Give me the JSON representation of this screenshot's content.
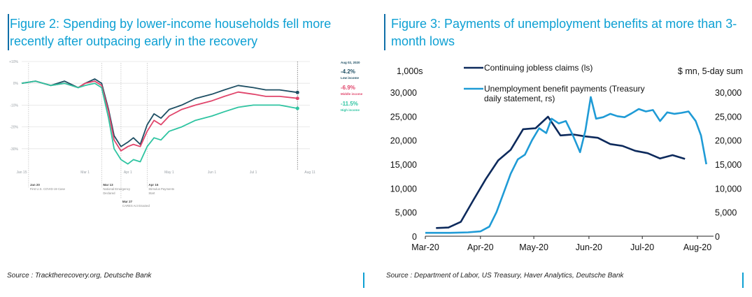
{
  "left": {
    "title": "Figure 2: Spending by lower-income households fell more recently after outpacing early in the recovery",
    "source": "Source : Tracktherecovery.org, Deutsche Bank",
    "chart_data": {
      "type": "line",
      "ylim": [
        -40,
        10
      ],
      "ylabels": [
        "+10%",
        "0%",
        "-10%",
        "-20%",
        "-30%"
      ],
      "xlabels": [
        "Jan 15",
        "Mar 1",
        "Apr 1",
        "May 1",
        "Jun 1",
        "Jul 1",
        "Aug 11"
      ],
      "date_label": "Aug 02, 2020",
      "series": [
        {
          "name": "Low income",
          "value_label": "-4.2%",
          "color": "#1d4e63",
          "x": [
            "Jan 15",
            "Jan 25",
            "Feb 5",
            "Feb 15",
            "Feb 25",
            "Mar 1",
            "Mar 8",
            "Mar 13",
            "Mar 18",
            "Mar 22",
            "Mar 27",
            "Apr 1",
            "Apr 5",
            "Apr 10",
            "Apr 15",
            "Apr 20",
            "Apr 25",
            "May 1",
            "May 10",
            "May 20",
            "Jun 1",
            "Jun 10",
            "Jun 20",
            "Jul 1",
            "Jul 10",
            "Jul 20",
            "Aug 2"
          ],
          "y": [
            0,
            1,
            -1,
            1,
            -2,
            0,
            2,
            0,
            -12,
            -24,
            -29,
            -27,
            -25,
            -28,
            -19,
            -14,
            -16,
            -12,
            -10,
            -7,
            -5,
            -3,
            -1,
            -2,
            -3,
            -3,
            -4.2
          ]
        },
        {
          "name": "Middle income",
          "value_label": "-6.9%",
          "color": "#e0456b",
          "x": [
            "Jan 15",
            "Jan 25",
            "Feb 5",
            "Feb 15",
            "Feb 25",
            "Mar 1",
            "Mar 8",
            "Mar 13",
            "Mar 18",
            "Mar 22",
            "Mar 27",
            "Apr 1",
            "Apr 5",
            "Apr 10",
            "Apr 15",
            "Apr 20",
            "Apr 25",
            "May 1",
            "May 10",
            "May 20",
            "Jun 1",
            "Jun 10",
            "Jun 20",
            "Jul 1",
            "Jul 10",
            "Jul 20",
            "Aug 2"
          ],
          "y": [
            0,
            1,
            -1,
            0,
            -2,
            0,
            1,
            -1,
            -13,
            -26,
            -31,
            -29,
            -28,
            -29,
            -22,
            -17,
            -19,
            -15,
            -12,
            -10,
            -8,
            -6,
            -4,
            -5,
            -6,
            -6,
            -6.9
          ]
        },
        {
          "name": "High income",
          "value_label": "-11.5%",
          "color": "#2ec4a1",
          "x": [
            "Jan 15",
            "Jan 25",
            "Feb 5",
            "Feb 15",
            "Feb 25",
            "Mar 1",
            "Mar 8",
            "Mar 13",
            "Mar 18",
            "Mar 22",
            "Mar 27",
            "Apr 1",
            "Apr 5",
            "Apr 10",
            "Apr 15",
            "Apr 20",
            "Apr 25",
            "May 1",
            "May 10",
            "May 20",
            "Jun 1",
            "Jun 10",
            "Jun 20",
            "Jul 1",
            "Jul 10",
            "Jul 20",
            "Aug 2"
          ],
          "y": [
            0,
            1,
            -1,
            0,
            -2,
            -1,
            0,
            -2,
            -16,
            -30,
            -35,
            -37,
            -35,
            -36,
            -29,
            -25,
            -26,
            -22,
            -20,
            -17,
            -15,
            -13,
            -11,
            -10,
            -10,
            -10,
            -11.5
          ]
        }
      ],
      "events": [
        {
          "date": "Jan 20",
          "label_1": "Jan 20",
          "label_2": "First U.S. COVID-19 Case"
        },
        {
          "date": "Mar 13",
          "label_1": "Mar 13",
          "label_2": "National Emergency",
          "label_3": "Declared"
        },
        {
          "date": "Mar 27",
          "label_1": "Mar 27",
          "label_2": "CARES Act Enacted"
        },
        {
          "date": "Apr 15",
          "label_1": "Apr 15",
          "label_2": "Stimulus Payments",
          "label_3": "Start"
        }
      ]
    }
  },
  "right": {
    "title": "Figure 3: Payments of unemployment benefits at more than 3-month lows",
    "source": "Source : Department of Labor, US Treasury, Haver Analytics, Deutsche Bank",
    "chart_data": {
      "type": "line",
      "ylabel_left": "1,000s",
      "ylabel_right": "$ mn, 5-day sum",
      "ylim": [
        0,
        30000
      ],
      "yticks": [
        "0",
        "5,000",
        "10,000",
        "15,000",
        "20,000",
        "25,000",
        "30,000"
      ],
      "xlabels": [
        "Mar-20",
        "Apr-20",
        "May-20",
        "Jun-20",
        "Jul-20",
        "Aug-20"
      ],
      "series": [
        {
          "name": "Continuing jobless claims (ls)",
          "color": "#0d2a5c",
          "x": [
            "2020-03-07",
            "2020-03-14",
            "2020-03-21",
            "2020-03-28",
            "2020-04-04",
            "2020-04-11",
            "2020-04-18",
            "2020-04-25",
            "2020-05-02",
            "2020-05-09",
            "2020-05-16",
            "2020-05-23",
            "2020-05-30",
            "2020-06-06",
            "2020-06-13",
            "2020-06-20",
            "2020-06-27",
            "2020-07-04",
            "2020-07-11",
            "2020-07-18",
            "2020-07-25"
          ],
          "y": [
            1700,
            1800,
            3000,
            7500,
            11900,
            15800,
            18000,
            22300,
            22500,
            24900,
            21000,
            21200,
            20800,
            20500,
            19200,
            18800,
            17800,
            17300,
            16200,
            16900,
            16100
          ]
        },
        {
          "name": "Unemployment benefit payments (Treasury daily statement, rs)",
          "color": "#1f9bd6",
          "x": [
            "2020-03-01",
            "2020-03-15",
            "2020-03-25",
            "2020-04-01",
            "2020-04-06",
            "2020-04-10",
            "2020-04-14",
            "2020-04-18",
            "2020-04-22",
            "2020-04-26",
            "2020-04-30",
            "2020-05-04",
            "2020-05-08",
            "2020-05-11",
            "2020-05-15",
            "2020-05-19",
            "2020-05-23",
            "2020-05-27",
            "2020-05-30",
            "2020-06-02",
            "2020-06-05",
            "2020-06-09",
            "2020-06-13",
            "2020-06-17",
            "2020-06-21",
            "2020-06-25",
            "2020-06-29",
            "2020-07-03",
            "2020-07-07",
            "2020-07-11",
            "2020-07-15",
            "2020-07-19",
            "2020-07-23",
            "2020-07-27",
            "2020-07-31",
            "2020-08-03",
            "2020-08-06"
          ],
          "y": [
            700,
            700,
            800,
            1000,
            2000,
            5000,
            9000,
            13000,
            16000,
            17000,
            20000,
            22500,
            21500,
            24500,
            23500,
            24000,
            21000,
            17500,
            22000,
            29000,
            24500,
            24800,
            25500,
            25000,
            24800,
            25600,
            26500,
            26000,
            26300,
            24000,
            25800,
            25500,
            25700,
            26000,
            24000,
            21000,
            15000
          ]
        }
      ]
    }
  }
}
